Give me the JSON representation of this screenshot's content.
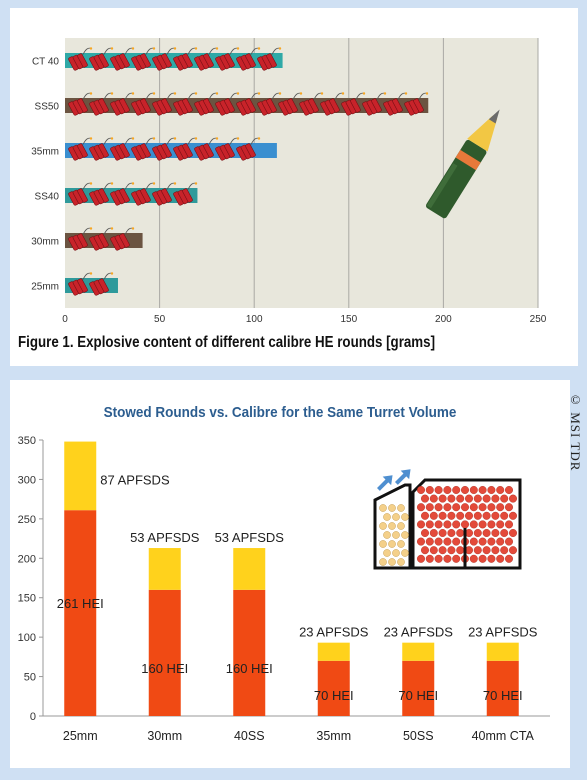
{
  "figure1": {
    "caption": "Figure 1. Explosive content of different calibre HE rounds [grams]",
    "chart_data": {
      "type": "bar",
      "orientation": "horizontal",
      "categories": [
        "CT 40",
        "SS50",
        "35mm",
        "SS40",
        "30mm",
        "25mm"
      ],
      "values": [
        115,
        192,
        112,
        70,
        41,
        28
      ],
      "bar_colors": [
        "#2fa9a7",
        "#6b5441",
        "#3a8fd0",
        "#2f9a9b",
        "#6b5441",
        "#2e9a9b"
      ],
      "xticks": [
        0,
        50,
        100,
        150,
        200,
        250
      ],
      "xlim": [
        0,
        250
      ],
      "grid": true,
      "title": "",
      "xlabel": "",
      "ylabel": ""
    }
  },
  "figure2": {
    "chart_data": {
      "type": "bar",
      "stacked": true,
      "title": "Stowed Rounds vs. Calibre for the Same Turret Volume",
      "categories": [
        "25mm",
        "30mm",
        "40SS",
        "35mm",
        "50SS",
        "40mm CTA"
      ],
      "series": [
        {
          "name": "HEI",
          "values": [
            261,
            160,
            160,
            70,
            70,
            70
          ],
          "color": "#f04a14"
        },
        {
          "name": "APFSDS",
          "values": [
            87,
            53,
            53,
            23,
            23,
            23
          ],
          "color": "#ffd21c"
        }
      ],
      "hei_labels": [
        "261 HEI",
        "160 HEI",
        "160 HEI",
        "70 HEI",
        "70 HEI",
        "70 HEI"
      ],
      "apfsds_labels": [
        "87 APFSDS",
        "53 APFSDS",
        "53 APFSDS",
        "23 APFSDS",
        "23 APFSDS",
        "23 APFSDS"
      ],
      "yticks": [
        0,
        50,
        100,
        150,
        200,
        250,
        300,
        350
      ],
      "ylim": [
        0,
        350
      ],
      "grid": false
    }
  },
  "watermark": "© MSI TDR",
  "colors": {
    "plot_bg": "#e8e7dc",
    "dynamite": "#c8232a",
    "shell_body": "#2f5a2c",
    "shell_band": "#e8793a",
    "shell_tip": "#f2c744",
    "dot_red": "#e34a3a",
    "dot_tan": "#f4d08a"
  },
  "icons": [
    "dynamite-icon",
    "ammunition-shell-icon",
    "turret-diagram-icon",
    "arrow-icon"
  ]
}
